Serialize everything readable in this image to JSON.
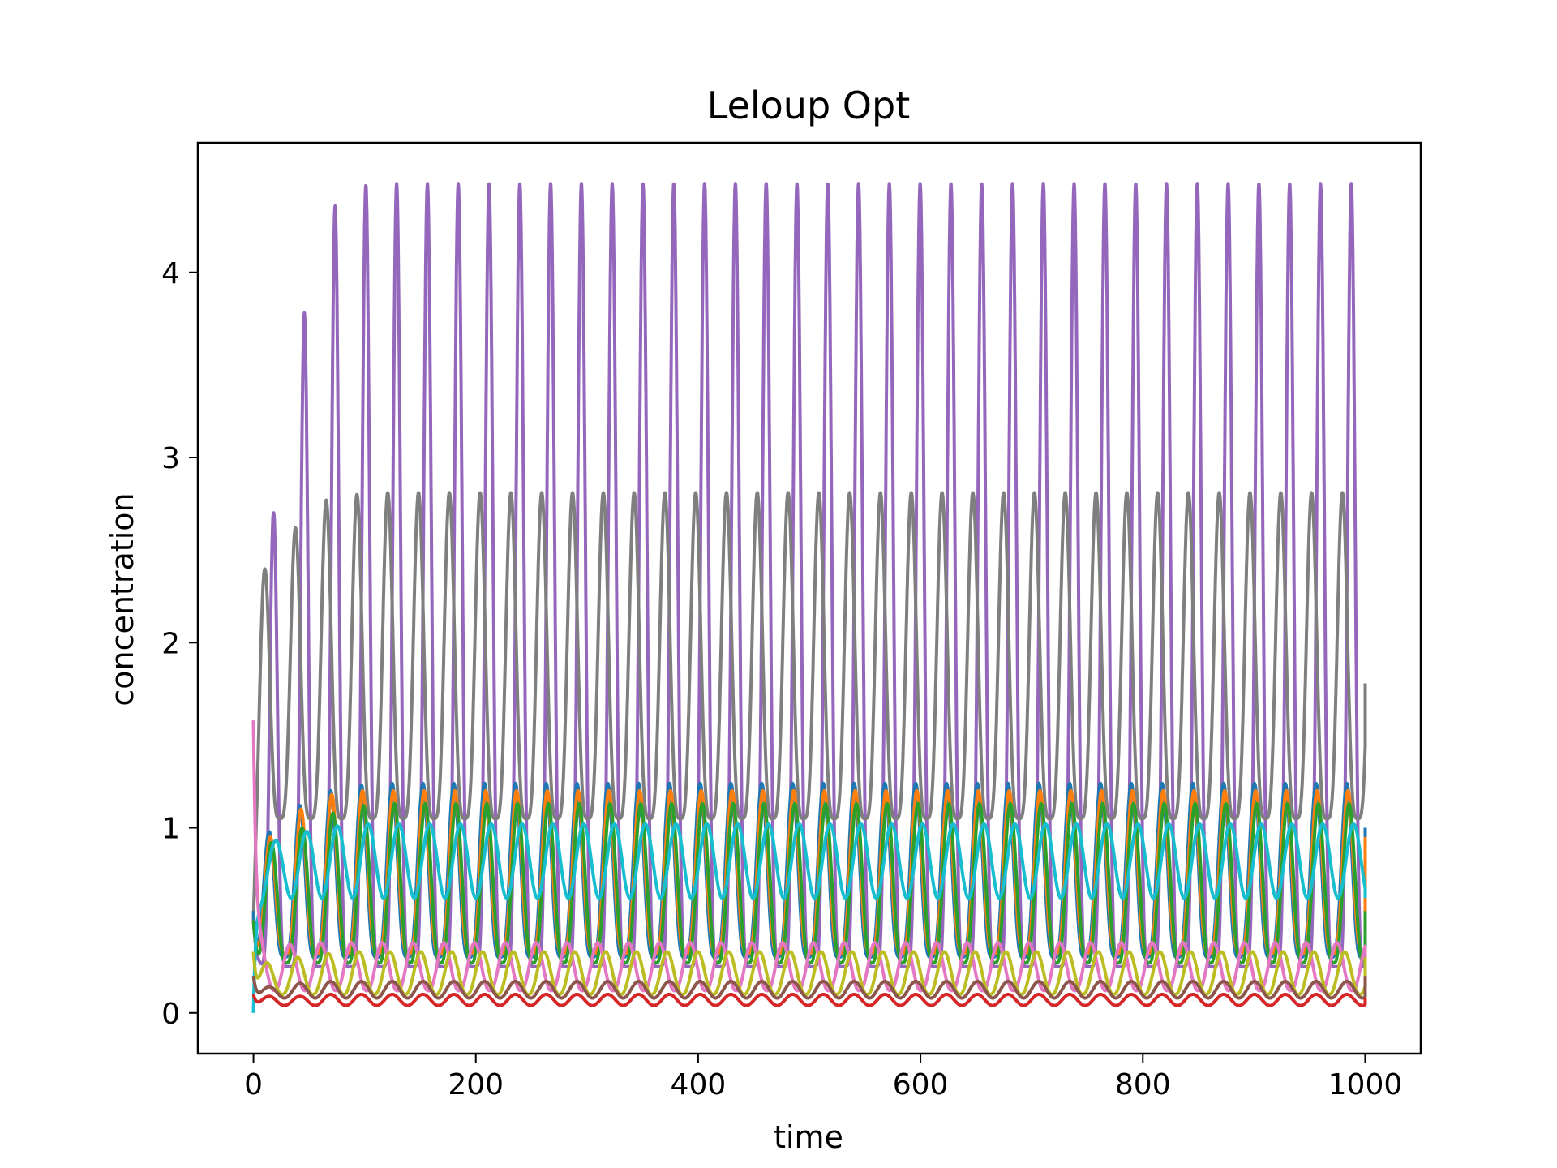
{
  "chart_data": {
    "type": "line",
    "title": "Leloup Opt",
    "xlabel": "time",
    "ylabel": "concentration",
    "xlim": [
      -50,
      1050
    ],
    "ylim": [
      -0.22,
      4.7
    ],
    "xticks": [
      0,
      200,
      400,
      600,
      800,
      1000
    ],
    "xtick_labels": [
      "0",
      "200",
      "400",
      "600",
      "800",
      "1000"
    ],
    "yticks": [
      0,
      1,
      2,
      3,
      4
    ],
    "ytick_labels": [
      "0",
      "1",
      "2",
      "3",
      "4"
    ],
    "grid": false,
    "legend": "none",
    "period": 27.7,
    "x_range": [
      0,
      1000
    ],
    "series": [
      {
        "color": "#9467bd",
        "initial": 0.5,
        "first_peak_time": 18,
        "peak_values": [
          2.7,
          3.78,
          4.36,
          4.47,
          4.48
        ],
        "trough": 0.25,
        "sharpness": 3.5,
        "final_value": 0.35
      },
      {
        "color": "#7f7f7f",
        "initial": 0.5,
        "first_peak_time": 10,
        "peak_values": [
          2.43,
          2.62,
          2.77,
          2.8,
          2.81
        ],
        "trough": 1.05,
        "sharpness": 2.0,
        "final_value": 1.78
      },
      {
        "color": "#1f77b4",
        "initial": 0.55,
        "first_peak_time": 14,
        "peak_values": [
          0.98,
          1.12,
          1.2,
          1.23,
          1.24
        ],
        "trough": 0.3,
        "sharpness": 1.8,
        "final_value": 1.0
      },
      {
        "color": "#ff7f0e",
        "initial": 0.5,
        "first_peak_time": 15,
        "peak_values": [
          0.95,
          1.1,
          1.18,
          1.2,
          1.2
        ],
        "trough": 0.32,
        "sharpness": 1.8,
        "final_value": 0.95
      },
      {
        "color": "#2ca02c",
        "initial": 0.5,
        "first_peak_time": 16,
        "peak_values": [
          0.92,
          1.0,
          1.08,
          1.12,
          1.13
        ],
        "trough": 0.27,
        "sharpness": 1.5,
        "final_value": 0.55
      },
      {
        "color": "#17becf",
        "initial": 0.0,
        "first_peak_time": 20,
        "peak_values": [
          0.93,
          0.98,
          1.01,
          1.02,
          1.02
        ],
        "trough": 0.62,
        "sharpness": 1.0,
        "final_value": 0.62
      },
      {
        "color": "#e377c2",
        "initial": 1.58,
        "first_peak_time": 5,
        "peak_values": [
          0.35,
          0.37,
          0.38,
          0.38,
          0.38
        ],
        "trough": 0.12,
        "sharpness": 1.2,
        "final_value": 0.3
      },
      {
        "color": "#bcbd22",
        "initial": 0.33,
        "first_peak_time": 12,
        "peak_values": [
          0.27,
          0.3,
          0.32,
          0.33,
          0.33
        ],
        "trough": 0.1,
        "sharpness": 1.2,
        "final_value": 0.3
      },
      {
        "color": "#8c564b",
        "initial": 0.2,
        "first_peak_time": 14,
        "peak_values": [
          0.14,
          0.16,
          0.17,
          0.17,
          0.17
        ],
        "trough": 0.08,
        "sharpness": 1.0,
        "final_value": 0.2
      },
      {
        "color": "#d62728",
        "initial": 0.1,
        "first_peak_time": 14,
        "peak_values": [
          0.09,
          0.09,
          0.1,
          0.1,
          0.1
        ],
        "trough": 0.04,
        "sharpness": 1.0,
        "final_value": 0.08
      }
    ]
  }
}
